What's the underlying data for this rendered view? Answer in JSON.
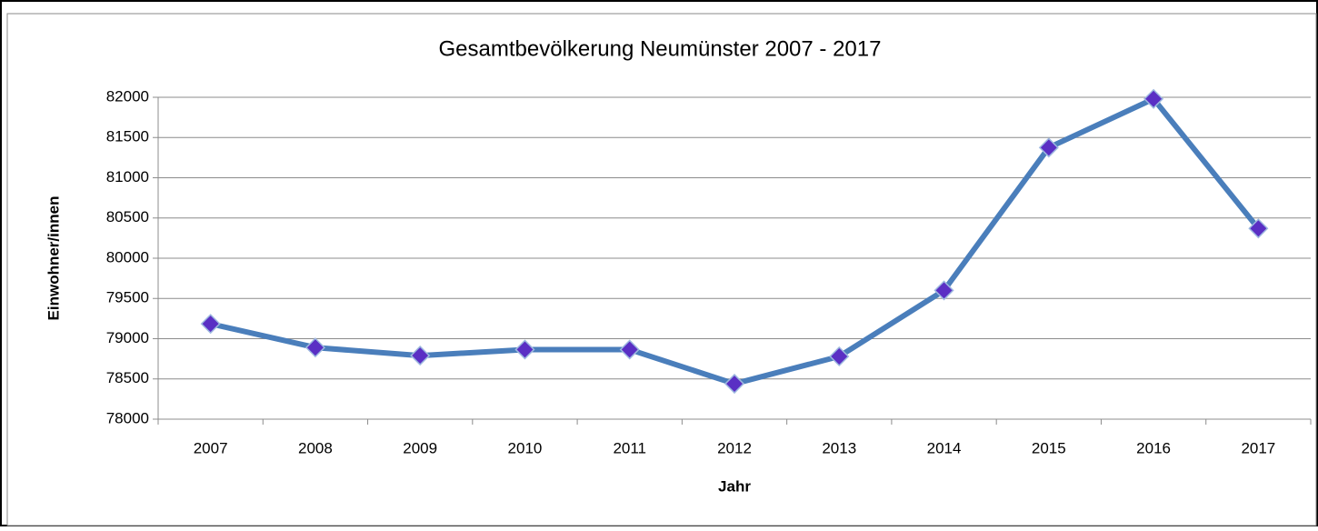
{
  "chart_data": {
    "type": "line",
    "title": "Gesamtbevölkerung Neumünster 2007 - 2017",
    "x_label": "Jahr",
    "y_label": "Einwohner/innen",
    "categories": [
      "2007",
      "2008",
      "2009",
      "2010",
      "2011",
      "2012",
      "2013",
      "2014",
      "2015",
      "2016",
      "2017"
    ],
    "series": [
      {
        "name": "Einwohner/innen",
        "color": "#4a7ebb",
        "marker_color": "#5a2fc4",
        "values": [
          79185,
          78890,
          78790,
          78865,
          78865,
          78440,
          78780,
          79600,
          81375,
          81980,
          80370
        ]
      }
    ],
    "ylim": [
      78000,
      82000
    ],
    "yticks": [
      78000,
      78500,
      79000,
      79500,
      80000,
      80500,
      81000,
      81500,
      82000
    ],
    "grid": true
  }
}
